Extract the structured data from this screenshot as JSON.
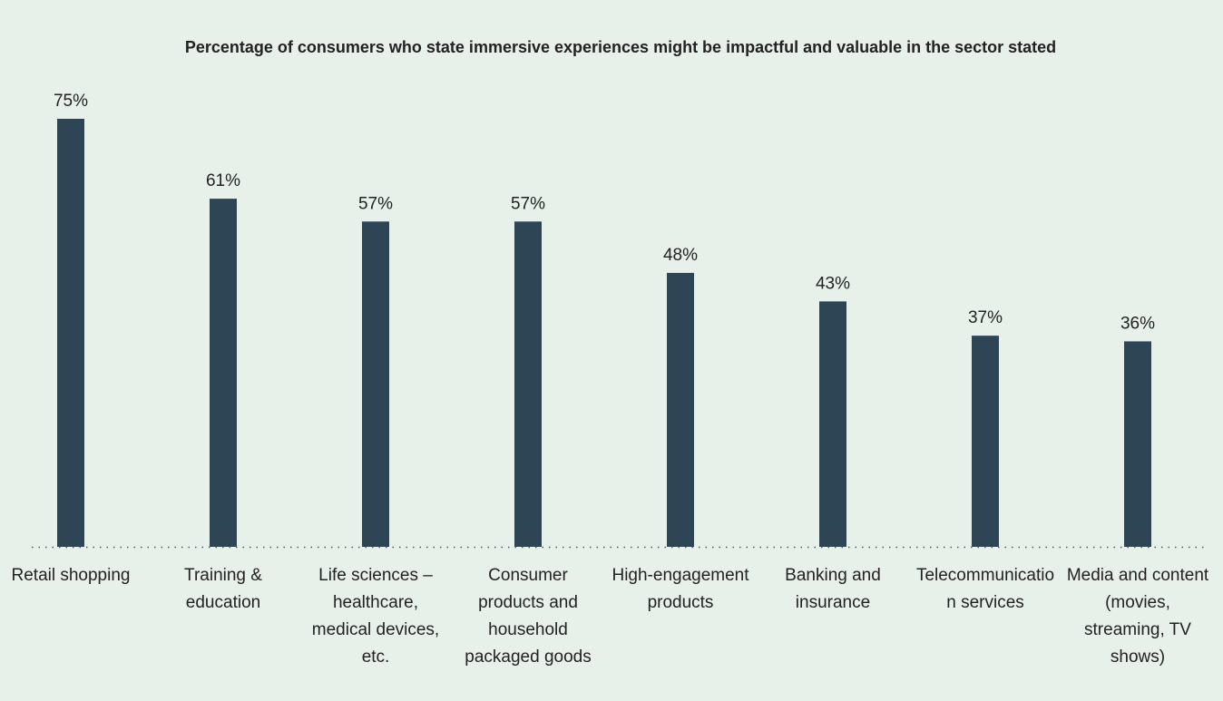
{
  "chart_data": {
    "type": "bar",
    "title": "Percentage of consumers who state immersive experiences might be impactful and valuable in the sector stated",
    "categories": [
      "Retail shopping",
      "Training & education",
      "Life sciences – healthcare, medical devices, etc.",
      "Consumer products and household packaged goods",
      "High-engagement products",
      "Banking and insurance",
      "Telecommunication services",
      "Media and content (movies, streaming, TV shows)"
    ],
    "values": [
      75,
      61,
      57,
      57,
      48,
      43,
      37,
      36
    ],
    "value_labels": [
      "75%",
      "61%",
      "57%",
      "57%",
      "48%",
      "43%",
      "37%",
      "36%"
    ],
    "color": "#2e4556",
    "ylim": [
      0,
      75
    ],
    "grid": false
  }
}
